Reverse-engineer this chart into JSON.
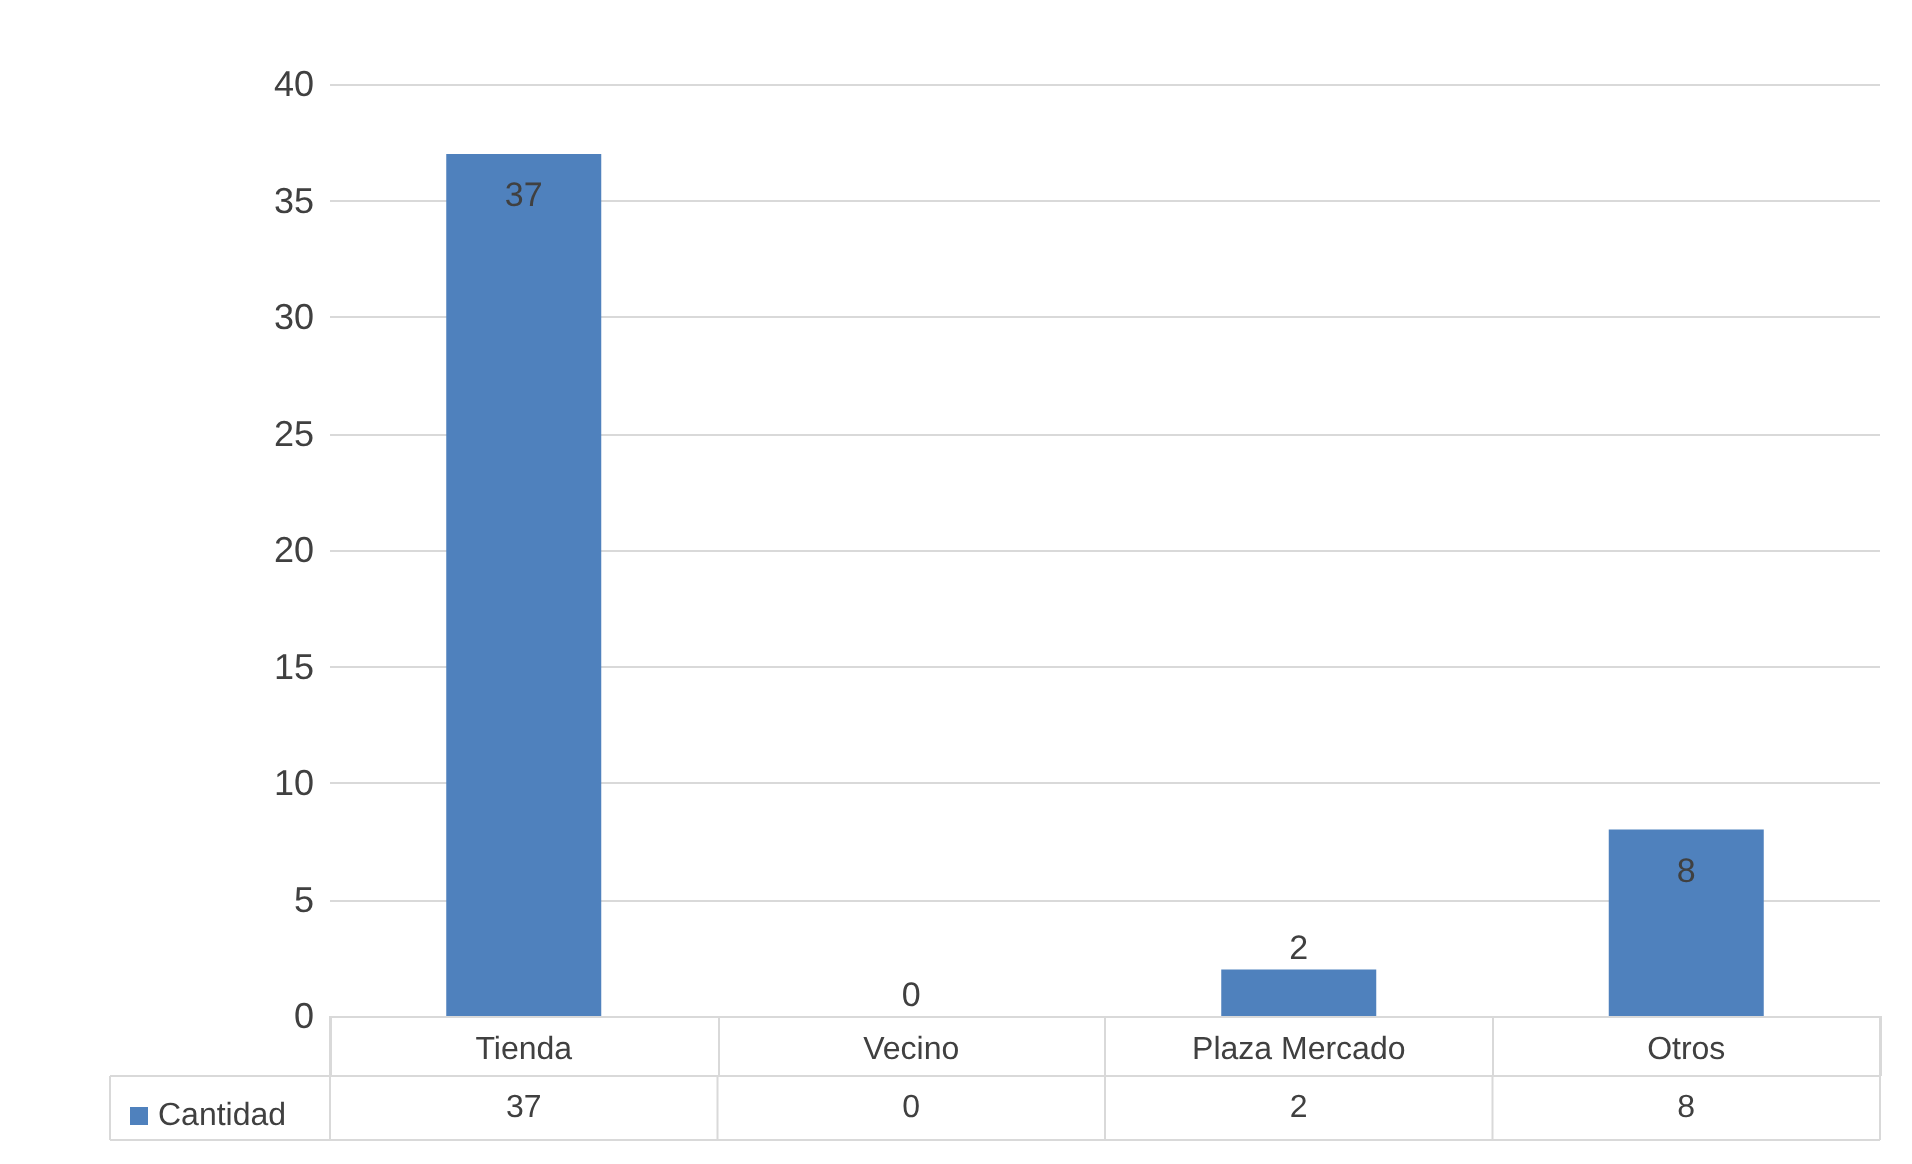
{
  "chart_data": {
    "type": "bar",
    "categories": [
      "Tienda",
      "Vecino",
      "Plaza Mercado",
      "Otros"
    ],
    "series": [
      {
        "name": "Cantidad",
        "color": "#4f81bd",
        "values": [
          37,
          0,
          2,
          8
        ]
      }
    ],
    "annotations": [
      "37",
      "0",
      "2",
      "8"
    ],
    "ylim": [
      0,
      40
    ],
    "yticks": [
      0,
      5,
      10,
      15,
      20,
      25,
      30,
      35,
      40
    ],
    "grid": "y",
    "data_labels": true,
    "legend": "bottom left"
  }
}
